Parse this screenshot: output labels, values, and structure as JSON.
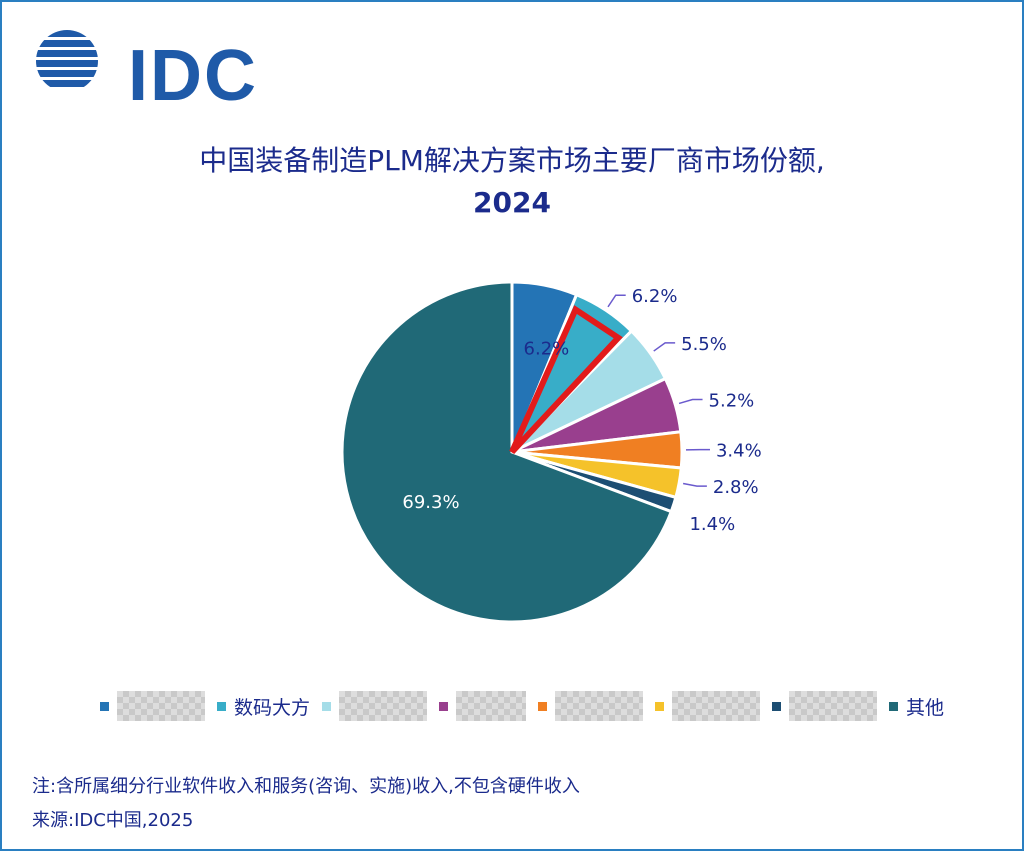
{
  "logo": {
    "text": "IDC"
  },
  "header": {
    "title_line1": "中国装备制造PLM解决方案市场主要厂商市场份额,",
    "title_line2": "2024"
  },
  "chart_data": {
    "type": "pie",
    "title": "中国装备制造PLM解决方案市场主要厂商市场份额, 2024",
    "unit": "%",
    "slices": [
      {
        "name": "",
        "value": 6.2,
        "label": "6.2%",
        "color": "#2474b5",
        "legend_redacted": true
      },
      {
        "name": "数码大方",
        "value": 6.2,
        "label": "6.2%",
        "color": "#38adc8",
        "highlighted": true
      },
      {
        "name": "",
        "value": 5.5,
        "label": "5.5%",
        "color": "#a5dde8",
        "legend_redacted": true
      },
      {
        "name": "",
        "value": 5.2,
        "label": "5.2%",
        "color": "#993f8e",
        "legend_redacted": true
      },
      {
        "name": "",
        "value": 3.4,
        "label": "3.4%",
        "color": "#f07f22",
        "legend_redacted": true
      },
      {
        "name": "",
        "value": 2.8,
        "label": "2.8%",
        "color": "#f5c22a",
        "legend_redacted": true
      },
      {
        "name": "",
        "value": 1.4,
        "label": "1.4%",
        "color": "#1d4e73",
        "legend_redacted": true
      },
      {
        "name": "其他",
        "value": 69.3,
        "label": "69.3%",
        "color": "#206977"
      }
    ],
    "highlight_color": "#e21b1b",
    "legend_position": "bottom",
    "label_color": "#1b2b8c",
    "leader_color": "#6a5acd"
  },
  "footer": {
    "note": "注:含所属细分行业软件收入和服务(咨询、实施)收入,不包含硬件收入",
    "source": "来源:IDC中国,2025"
  }
}
